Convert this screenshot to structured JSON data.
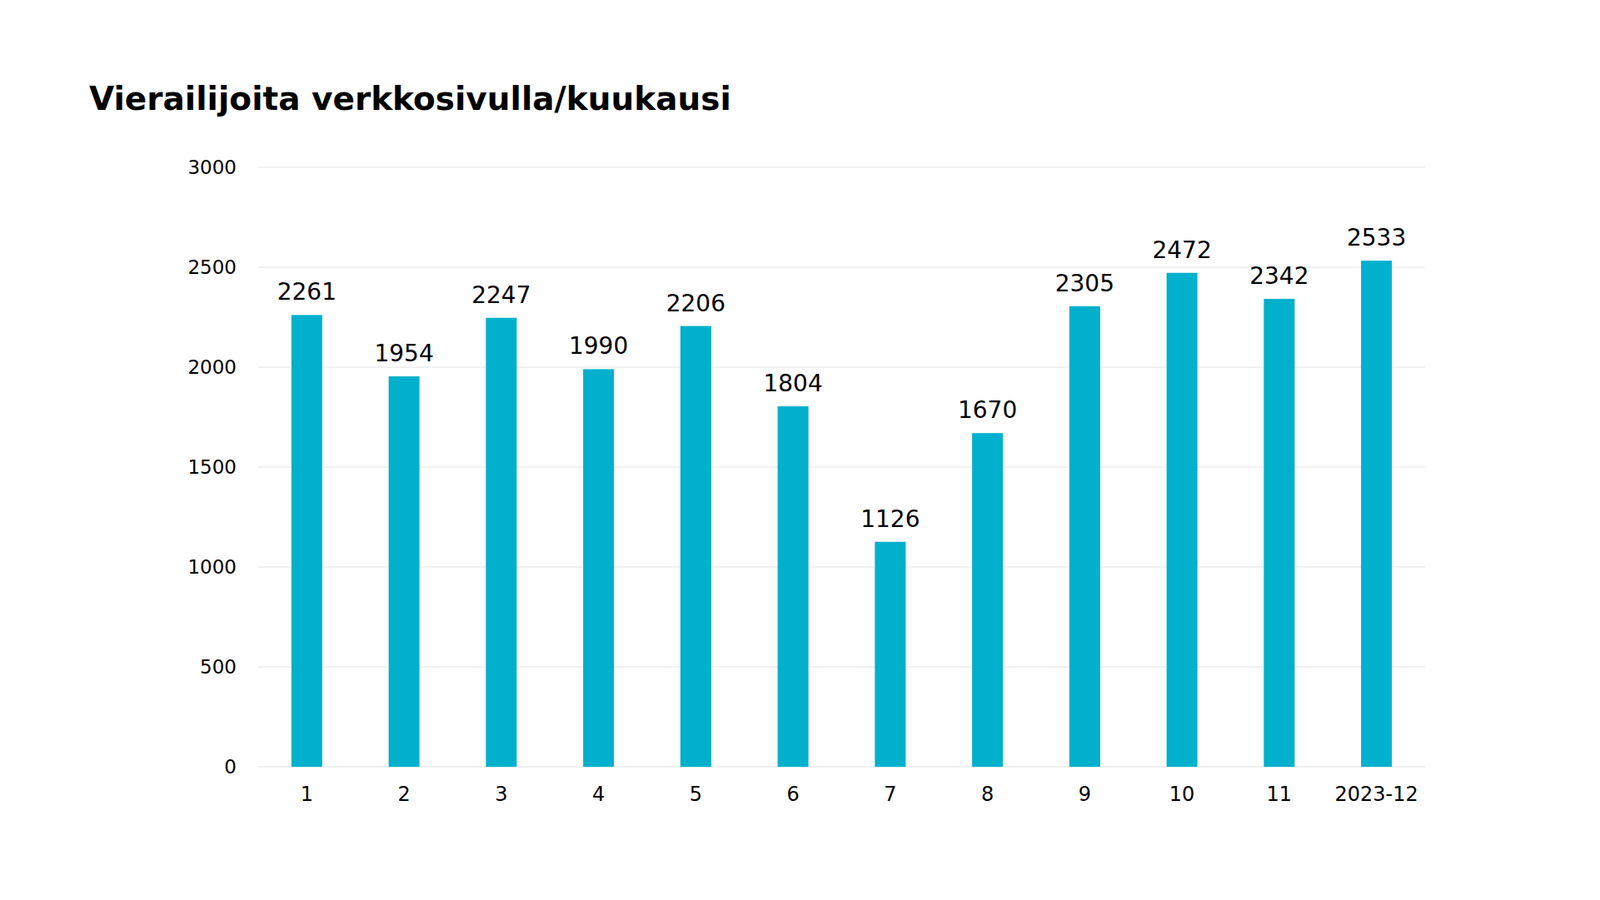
{
  "chart_data": {
    "type": "bar",
    "title": "Vierailijoita verkkosivulla/kuukausi",
    "categories": [
      "1",
      "2",
      "3",
      "4",
      "5",
      "6",
      "7",
      "8",
      "9",
      "10",
      "11",
      "2023-12"
    ],
    "values": [
      2261,
      1954,
      2247,
      1990,
      2206,
      1804,
      1126,
      1670,
      2305,
      2472,
      2342,
      2533
    ],
    "color": "#00b0cc",
    "ylim": [
      0,
      3000
    ],
    "yticks": [
      0,
      500,
      1000,
      1500,
      2000,
      2500,
      3000
    ],
    "grid": true,
    "data_labels": true
  }
}
